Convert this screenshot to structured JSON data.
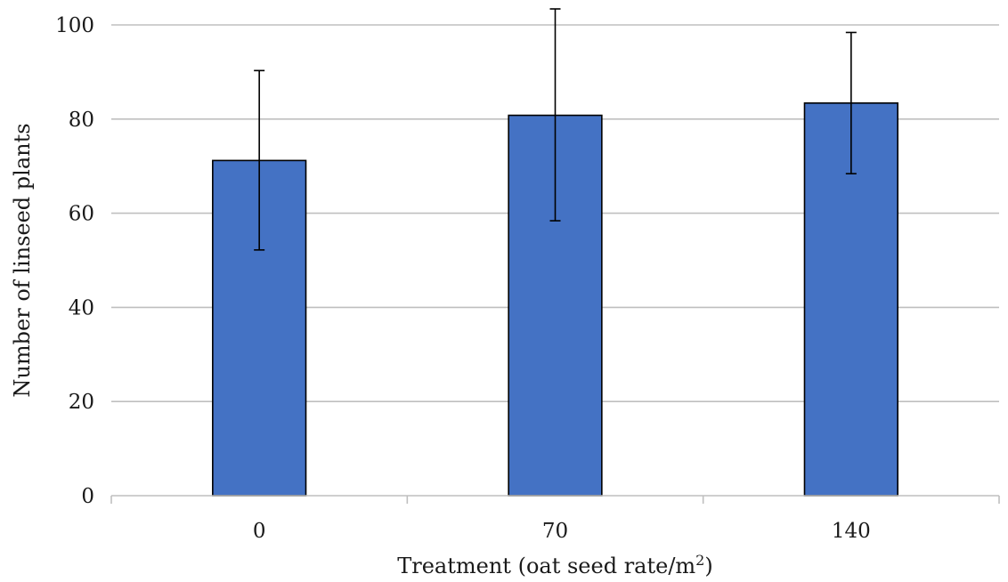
{
  "chart_data": {
    "type": "bar",
    "categories": [
      "0",
      "70",
      "140"
    ],
    "series": [
      {
        "values": [
          71.2,
          80.8,
          83.4
        ],
        "error_low": [
          52.2,
          58.4,
          68.4
        ],
        "error_high": [
          90.3,
          103.4,
          98.4
        ],
        "color": "#4472c4"
      }
    ],
    "xlabel": "Treatment (oat seed rate/m",
    "xlabel_superscript": "2",
    "xlabel_suffix": ")",
    "ylabel": "Number of linseed plants",
    "ylim": [
      0,
      100
    ],
    "yticks": [
      "0",
      "20",
      "40",
      "60",
      "80",
      "100"
    ],
    "grid": true,
    "legend": "none"
  }
}
